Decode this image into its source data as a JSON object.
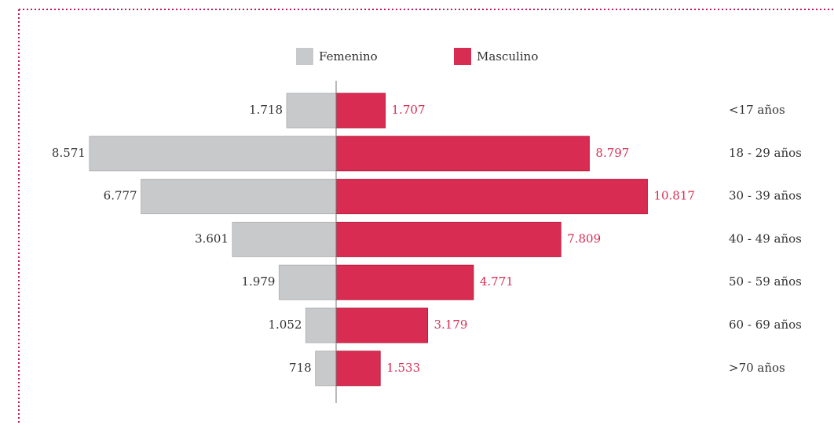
{
  "chart_data": {
    "type": "bar",
    "categories": [
      "<17 años",
      "18 - 29 años",
      "30 - 39 años",
      "40 - 49 años",
      "50 - 59 años",
      "60 - 69 años",
      ">70 años"
    ],
    "series": [
      {
        "name": "Femenino",
        "color": "#c8c9cb",
        "values": [
          1718,
          8571,
          6777,
          3601,
          1979,
          1052,
          718
        ],
        "value_labels": [
          "1.718",
          "8.571",
          "6.777",
          "3.601",
          "1.979",
          "1.052",
          "718"
        ]
      },
      {
        "name": "Masculino",
        "color": "#d92c52",
        "values": [
          1707,
          8797,
          10817,
          7809,
          4771,
          3179,
          1533
        ],
        "value_labels": [
          "1.707",
          "8.797",
          "10.817",
          "7.809",
          "4.771",
          "3.179",
          "1.533"
        ]
      }
    ]
  }
}
